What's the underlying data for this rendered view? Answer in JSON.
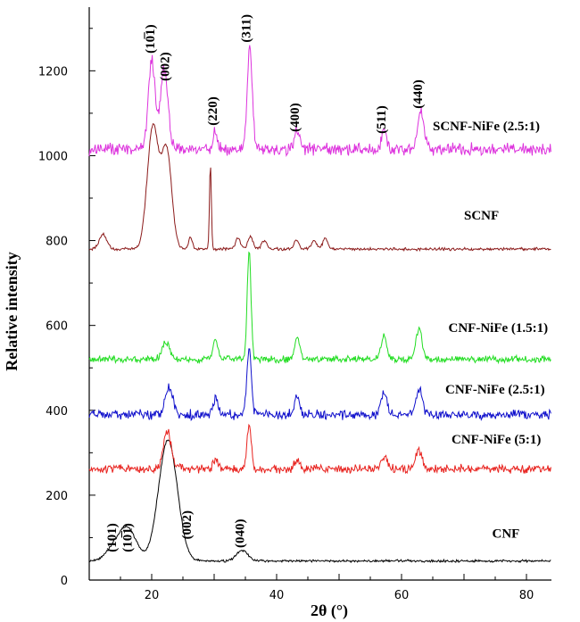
{
  "chart_data": {
    "type": "line",
    "xlabel": "2θ (°)",
    "ylabel": "Relative intensity",
    "xlim": [
      10,
      84
    ],
    "ylim": [
      0,
      1350
    ],
    "x_ticks": [
      20,
      40,
      60,
      80
    ],
    "y_ticks": [
      0,
      200,
      400,
      600,
      800,
      1000,
      1200
    ],
    "grid": false,
    "legend": "none",
    "series": [
      {
        "name": "CNF",
        "color": "#000000",
        "baseline": 45,
        "noise": 2.5,
        "peaks": [
          {
            "x": 14.8,
            "h": 45,
            "w": 1.6
          },
          {
            "x": 16.5,
            "h": 50,
            "w": 1.3
          },
          {
            "x": 22.6,
            "h": 285,
            "w": 1.5
          },
          {
            "x": 34.5,
            "h": 25,
            "w": 0.9
          }
        ]
      },
      {
        "name": "CNF-NiFe (5:1)",
        "color": "#e8231f",
        "baseline": 262,
        "noise": 9,
        "peaks": [
          {
            "x": 22.5,
            "h": 90,
            "w": 0.6
          },
          {
            "x": 30.2,
            "h": 22,
            "w": 0.4
          },
          {
            "x": 35.6,
            "h": 102,
            "w": 0.35
          },
          {
            "x": 43.3,
            "h": 22,
            "w": 0.4
          },
          {
            "x": 57.2,
            "h": 32,
            "w": 0.45
          },
          {
            "x": 62.8,
            "h": 42,
            "w": 0.5
          }
        ]
      },
      {
        "name": "CNF-NiFe (2.5:1)",
        "color": "#1010cc",
        "baseline": 390,
        "noise": 10,
        "peaks": [
          {
            "x": 22.8,
            "h": 65,
            "w": 0.6
          },
          {
            "x": 30.2,
            "h": 38,
            "w": 0.4
          },
          {
            "x": 35.6,
            "h": 155,
            "w": 0.35
          },
          {
            "x": 43.3,
            "h": 48,
            "w": 0.4
          },
          {
            "x": 57.2,
            "h": 50,
            "w": 0.45
          },
          {
            "x": 62.8,
            "h": 58,
            "w": 0.5
          }
        ]
      },
      {
        "name": "CNF-NiFe (1.5:1)",
        "color": "#22dd22",
        "baseline": 520,
        "noise": 7,
        "peaks": [
          {
            "x": 22.3,
            "h": 40,
            "w": 0.6
          },
          {
            "x": 30.2,
            "h": 48,
            "w": 0.4
          },
          {
            "x": 35.6,
            "h": 255,
            "w": 0.3
          },
          {
            "x": 43.3,
            "h": 52,
            "w": 0.4
          },
          {
            "x": 57.2,
            "h": 55,
            "w": 0.45
          },
          {
            "x": 62.8,
            "h": 72,
            "w": 0.5
          }
        ]
      },
      {
        "name": "SCNF",
        "color": "#8b1a1a",
        "baseline": 780,
        "noise": 3,
        "peaks": [
          {
            "x": 12.2,
            "h": 35,
            "w": 0.6
          },
          {
            "x": 20.2,
            "h": 290,
            "w": 0.9
          },
          {
            "x": 22.4,
            "h": 230,
            "w": 0.8
          },
          {
            "x": 26.2,
            "h": 28,
            "w": 0.3
          },
          {
            "x": 29.4,
            "h": 200,
            "w": 0.15
          },
          {
            "x": 33.8,
            "h": 25,
            "w": 0.4
          },
          {
            "x": 35.8,
            "h": 30,
            "w": 0.4
          },
          {
            "x": 38.0,
            "h": 20,
            "w": 0.4
          },
          {
            "x": 43.2,
            "h": 22,
            "w": 0.4
          },
          {
            "x": 46.0,
            "h": 20,
            "w": 0.4
          },
          {
            "x": 47.8,
            "h": 25,
            "w": 0.4
          }
        ]
      },
      {
        "name": "SCNF-NiFe (2.5:1)",
        "color": "#dd33dd",
        "baseline": 1015,
        "noise": 12,
        "peaks": [
          {
            "x": 20.0,
            "h": 210,
            "w": 0.55
          },
          {
            "x": 22.0,
            "h": 190,
            "w": 0.6
          },
          {
            "x": 30.2,
            "h": 45,
            "w": 0.3
          },
          {
            "x": 35.7,
            "h": 235,
            "w": 0.4
          },
          {
            "x": 43.3,
            "h": 45,
            "w": 0.4
          },
          {
            "x": 57.2,
            "h": 45,
            "w": 0.4
          },
          {
            "x": 63.1,
            "h": 90,
            "w": 0.5
          }
        ]
      }
    ],
    "series_labels": [
      {
        "text": "SCNF-NiFe (2.5:1)",
        "x": 65,
        "y": 1060
      },
      {
        "text": "SCNF",
        "x": 70,
        "y": 850
      },
      {
        "text": "CNF-NiFe (1.5:1)",
        "x": 67.5,
        "y": 585
      },
      {
        "text": "CNF-NiFe (2.5:1)",
        "x": 67,
        "y": 440
      },
      {
        "text": "CNF-NiFe (5:1)",
        "x": 68,
        "y": 322
      },
      {
        "text": "CNF",
        "x": 74.5,
        "y": 100
      }
    ],
    "peak_labels": [
      {
        "text": "(10̅1)",
        "x": 20.4,
        "y": 1275
      },
      {
        "text": "(002)",
        "x": 22.8,
        "y": 1210
      },
      {
        "text": "(220)",
        "x": 30.4,
        "y": 1105
      },
      {
        "text": "(311)",
        "x": 35.8,
        "y": 1300
      },
      {
        "text": "(400)",
        "x": 43.6,
        "y": 1090
      },
      {
        "text": "(511)",
        "x": 57.4,
        "y": 1085
      },
      {
        "text": "(440)",
        "x": 63.3,
        "y": 1145
      },
      {
        "text": "(101)",
        "x": 14.3,
        "y": 100
      },
      {
        "text": "(10̅1)",
        "x": 16.8,
        "y": 100
      },
      {
        "text": "(002)",
        "x": 26.3,
        "y": 130
      },
      {
        "text": "(040)",
        "x": 34.8,
        "y": 110
      }
    ]
  }
}
